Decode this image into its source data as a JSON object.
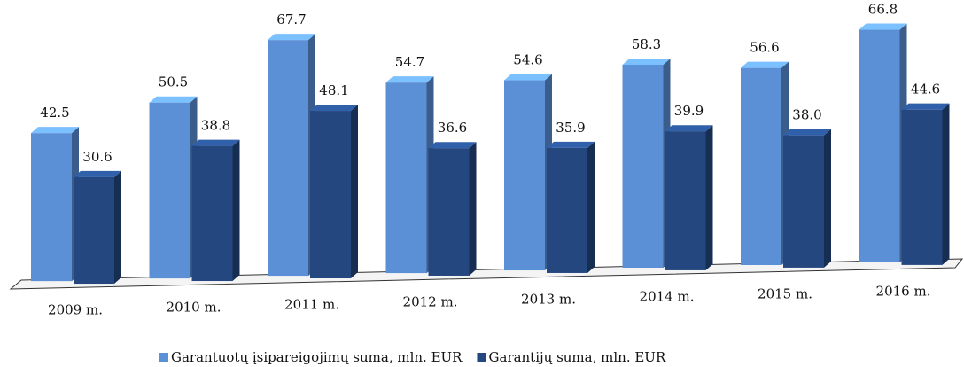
{
  "chart_data": {
    "type": "bar3d",
    "categories": [
      "2009 m.",
      "2010 m.",
      "2011 m.",
      "2012 m.",
      "2013 m.",
      "2014 m.",
      "2015 m.",
      "2016 m."
    ],
    "series": [
      {
        "name": "Garantuotų įsipareigojimų suma, mln. EUR",
        "color": "#5b8fd6",
        "values": [
          42.5,
          50.5,
          67.7,
          54.7,
          54.6,
          58.3,
          56.6,
          66.8
        ],
        "value_labels": [
          "42.5",
          "50.5",
          "67.7",
          "54.7",
          "54.6",
          "58.3",
          "56.6",
          "66.8"
        ]
      },
      {
        "name": "Garantijų suma, mln. EUR",
        "color": "#24477f",
        "values": [
          30.6,
          38.8,
          48.1,
          36.6,
          35.9,
          39.9,
          38.0,
          44.6
        ],
        "value_labels": [
          "30.6",
          "38.8",
          "48.1",
          "36.6",
          "35.9",
          "39.9",
          "38.0",
          "44.6"
        ]
      }
    ],
    "ylim": [
      0,
      70
    ],
    "legend": "bottom"
  }
}
